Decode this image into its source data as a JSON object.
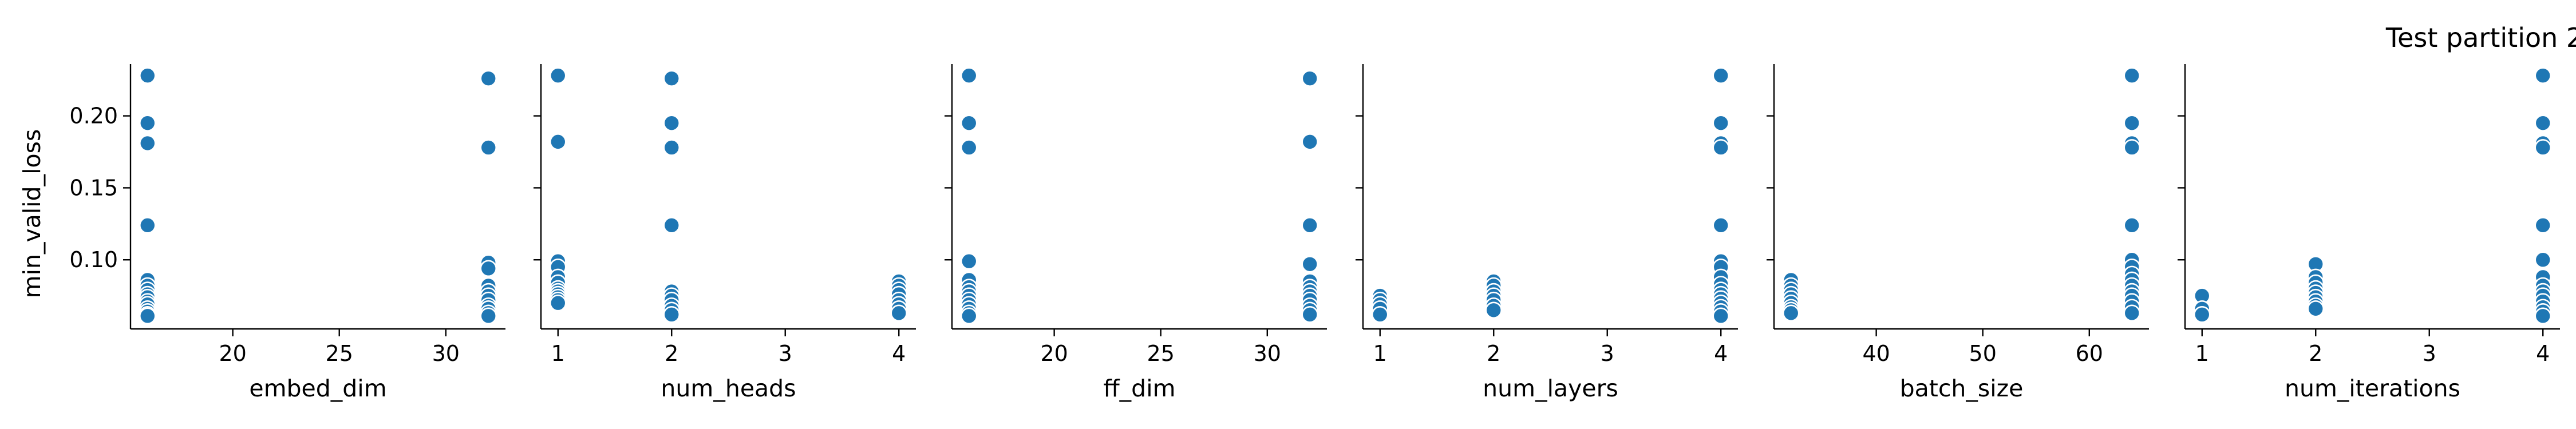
{
  "figure": {
    "title": "Test partition 2"
  },
  "chart_data": [
    {
      "type": "scatter",
      "xlabel": "embed_dim",
      "ylabel": "min_valid_loss",
      "xlim": [
        15.2,
        32.8
      ],
      "ylim": [
        0.052,
        0.236
      ],
      "xticks": [
        20,
        25,
        30
      ],
      "yticks": [
        0.1,
        0.15,
        0.2
      ],
      "ytick_labels": [
        "0.10",
        "0.15",
        "0.20"
      ],
      "x": [
        16,
        16,
        16,
        16,
        16,
        16,
        16,
        16,
        16,
        16,
        16,
        16,
        16,
        16,
        16,
        32,
        32,
        32,
        32,
        32,
        32,
        32,
        32,
        32,
        32,
        32,
        32
      ],
      "y": [
        0.228,
        0.195,
        0.181,
        0.124,
        0.086,
        0.082,
        0.079,
        0.076,
        0.074,
        0.071,
        0.069,
        0.066,
        0.064,
        0.062,
        0.061,
        0.226,
        0.178,
        0.098,
        0.094,
        0.082,
        0.078,
        0.075,
        0.072,
        0.068,
        0.066,
        0.063,
        0.061
      ],
      "color": "#1f77b4"
    },
    {
      "type": "scatter",
      "xlabel": "num_heads",
      "ylabel": "",
      "xlim": [
        0.85,
        4.15
      ],
      "ylim": [
        0.052,
        0.236
      ],
      "xticks": [
        1,
        2,
        3,
        4
      ],
      "x": [
        1,
        1,
        1,
        1,
        1,
        1,
        1,
        1,
        1,
        1,
        1,
        1,
        2,
        2,
        2,
        2,
        2,
        2,
        2,
        2,
        2,
        2,
        4,
        4,
        4,
        4,
        4,
        4,
        4,
        4
      ],
      "y": [
        0.228,
        0.182,
        0.099,
        0.095,
        0.088,
        0.084,
        0.08,
        0.078,
        0.076,
        0.074,
        0.072,
        0.07,
        0.226,
        0.195,
        0.178,
        0.124,
        0.078,
        0.075,
        0.072,
        0.068,
        0.065,
        0.062,
        0.085,
        0.082,
        0.079,
        0.076,
        0.072,
        0.069,
        0.066,
        0.063
      ],
      "color": "#1f77b4"
    },
    {
      "type": "scatter",
      "xlabel": "ff_dim",
      "ylabel": "",
      "xlim": [
        15.2,
        32.8
      ],
      "ylim": [
        0.052,
        0.236
      ],
      "xticks": [
        20,
        25,
        30
      ],
      "x": [
        16,
        16,
        16,
        16,
        16,
        16,
        16,
        16,
        16,
        16,
        16,
        16,
        16,
        32,
        32,
        32,
        32,
        32,
        32,
        32,
        32,
        32,
        32,
        32,
        32
      ],
      "y": [
        0.228,
        0.195,
        0.178,
        0.099,
        0.086,
        0.081,
        0.078,
        0.075,
        0.072,
        0.069,
        0.066,
        0.063,
        0.061,
        0.226,
        0.182,
        0.124,
        0.097,
        0.085,
        0.081,
        0.078,
        0.075,
        0.072,
        0.068,
        0.065,
        0.062
      ],
      "color": "#1f77b4"
    },
    {
      "type": "scatter",
      "xlabel": "num_layers",
      "ylabel": "",
      "xlim": [
        0.85,
        4.15
      ],
      "ylim": [
        0.052,
        0.236
      ],
      "xticks": [
        1,
        2,
        3,
        4
      ],
      "x": [
        1,
        1,
        1,
        1,
        1,
        2,
        2,
        2,
        2,
        2,
        2,
        2,
        4,
        4,
        4,
        4,
        4,
        4,
        4,
        4,
        4,
        4,
        4,
        4,
        4,
        4,
        4,
        4
      ],
      "y": [
        0.075,
        0.072,
        0.069,
        0.066,
        0.062,
        0.085,
        0.082,
        0.078,
        0.075,
        0.072,
        0.068,
        0.065,
        0.228,
        0.195,
        0.181,
        0.178,
        0.124,
        0.099,
        0.095,
        0.088,
        0.083,
        0.079,
        0.076,
        0.073,
        0.07,
        0.067,
        0.064,
        0.061
      ],
      "color": "#1f77b4"
    },
    {
      "type": "scatter",
      "xlabel": "batch_size",
      "ylabel": "",
      "xlim": [
        30.4,
        65.6
      ],
      "ylim": [
        0.052,
        0.236
      ],
      "xticks": [
        40,
        50,
        60
      ],
      "x": [
        32,
        32,
        32,
        32,
        32,
        32,
        32,
        32,
        32,
        64,
        64,
        64,
        64,
        64,
        64,
        64,
        64,
        64,
        64,
        64,
        64,
        64,
        64,
        64
      ],
      "y": [
        0.086,
        0.082,
        0.079,
        0.076,
        0.073,
        0.07,
        0.067,
        0.065,
        0.063,
        0.228,
        0.195,
        0.181,
        0.178,
        0.124,
        0.1,
        0.095,
        0.09,
        0.086,
        0.082,
        0.078,
        0.075,
        0.071,
        0.067,
        0.063
      ],
      "color": "#1f77b4"
    },
    {
      "type": "scatter",
      "xlabel": "num_iterations",
      "ylabel": "",
      "xlim": [
        0.85,
        4.15
      ],
      "ylim": [
        0.052,
        0.236
      ],
      "xticks": [
        1,
        2,
        3,
        4
      ],
      "x": [
        1,
        1,
        1,
        2,
        2,
        2,
        2,
        2,
        2,
        2,
        2,
        2,
        4,
        4,
        4,
        4,
        4,
        4,
        4,
        4,
        4,
        4,
        4,
        4,
        4,
        4
      ],
      "y": [
        0.075,
        0.066,
        0.062,
        0.097,
        0.088,
        0.084,
        0.08,
        0.077,
        0.074,
        0.071,
        0.068,
        0.066,
        0.228,
        0.195,
        0.181,
        0.178,
        0.124,
        0.1,
        0.088,
        0.082,
        0.078,
        0.075,
        0.071,
        0.067,
        0.064,
        0.061
      ],
      "color": "#1f77b4"
    }
  ]
}
